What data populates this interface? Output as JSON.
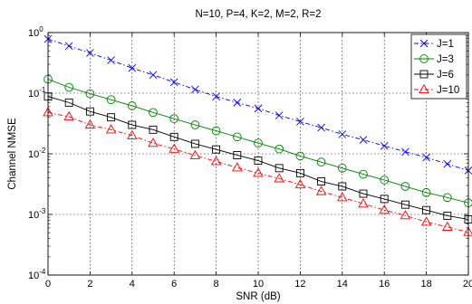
{
  "chart_data": {
    "type": "line",
    "title": "N=10, P=4, K=2, M=2, R=2",
    "xlabel": "SNR (dB)",
    "ylabel": "Channel NMSE",
    "xlim": [
      0,
      20
    ],
    "ylim": [
      0.0001,
      1
    ],
    "yscale": "log",
    "grid": true,
    "legend_position": "top-right",
    "x_ticks": [
      "0",
      "2",
      "4",
      "6",
      "8",
      "10",
      "12",
      "14",
      "16",
      "18",
      "20"
    ],
    "y_ticks": [
      {
        "base": "10",
        "exp": "-4"
      },
      {
        "base": "10",
        "exp": "-3"
      },
      {
        "base": "10",
        "exp": "-2"
      },
      {
        "base": "10",
        "exp": "-1"
      },
      {
        "base": "10",
        "exp": "0"
      }
    ],
    "x": [
      0,
      1,
      2,
      3,
      4,
      5,
      6,
      7,
      8,
      9,
      10,
      11,
      12,
      13,
      14,
      15,
      16,
      17,
      18,
      19,
      20
    ],
    "series": [
      {
        "name": "J=1",
        "color": "#0000ff",
        "marker": "x",
        "line": "dashdot",
        "values": [
          0.78,
          0.6,
          0.46,
          0.35,
          0.26,
          0.2,
          0.152,
          0.115,
          0.088,
          0.07,
          0.056,
          0.043,
          0.034,
          0.027,
          0.021,
          0.017,
          0.0135,
          0.0108,
          0.0087,
          0.0068,
          0.0053
        ]
      },
      {
        "name": "J=3",
        "color": "#008000",
        "marker": "circle",
        "line": "solid",
        "values": [
          0.17,
          0.125,
          0.098,
          0.078,
          0.062,
          0.048,
          0.038,
          0.03,
          0.024,
          0.019,
          0.015,
          0.012,
          0.0092,
          0.0073,
          0.0058,
          0.0046,
          0.0037,
          0.0029,
          0.0023,
          0.0019,
          0.00155
        ]
      },
      {
        "name": "J=6",
        "color": "#000000",
        "marker": "square",
        "line": "solid",
        "values": [
          0.088,
          0.07,
          0.05,
          0.04,
          0.03,
          0.025,
          0.019,
          0.0146,
          0.0118,
          0.0095,
          0.0077,
          0.0058,
          0.0048,
          0.0035,
          0.0029,
          0.0022,
          0.0018,
          0.00145,
          0.00118,
          0.00095,
          0.00083
        ]
      },
      {
        "name": "J=10",
        "color": "#ff0000",
        "marker": "triangle",
        "line": "dashdot",
        "values": [
          0.048,
          0.041,
          0.03,
          0.025,
          0.02,
          0.015,
          0.012,
          0.0094,
          0.0075,
          0.0059,
          0.0048,
          0.0039,
          0.0031,
          0.0024,
          0.0019,
          0.0015,
          0.00118,
          0.00096,
          0.00075,
          0.00062,
          0.00051
        ]
      }
    ]
  }
}
